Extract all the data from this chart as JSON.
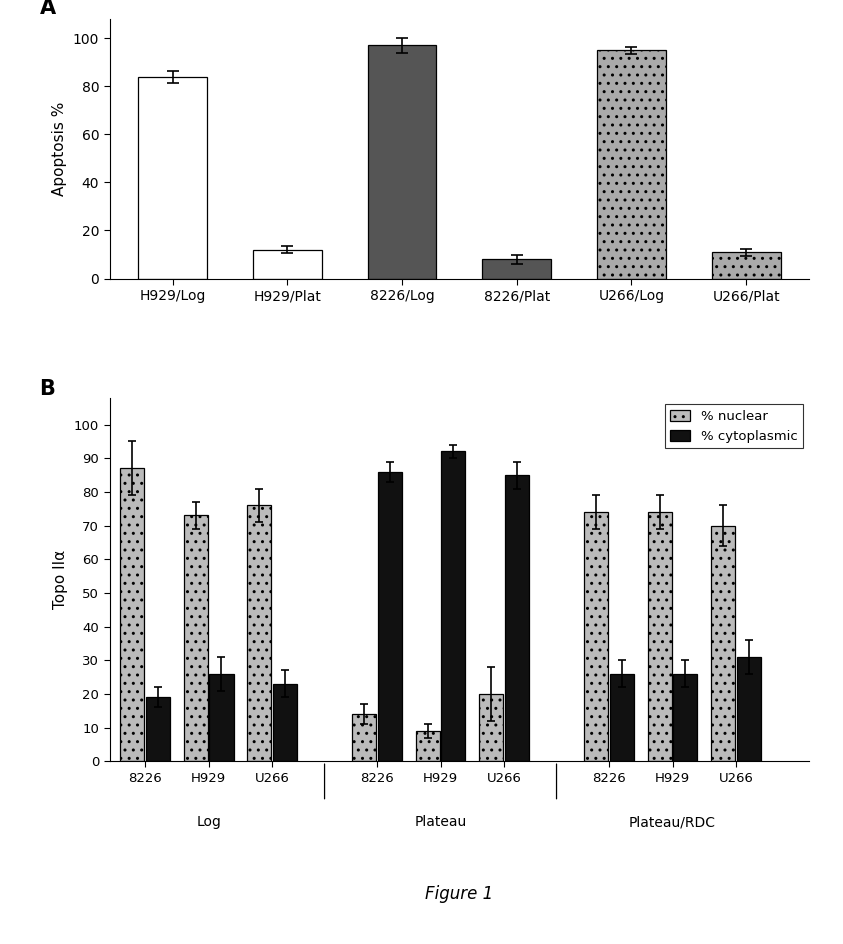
{
  "panel_A": {
    "categories": [
      "H929/Log",
      "H929/Plat",
      "8226/Log",
      "8226/Plat",
      "U266/Log",
      "U266/Plat"
    ],
    "values": [
      84,
      12,
      97,
      8,
      95,
      11
    ],
    "errors": [
      2.5,
      1.5,
      3.0,
      2.0,
      1.5,
      1.5
    ],
    "colors": [
      "white",
      "white",
      "#555555",
      "#555555",
      "#aaaaaa",
      "#aaaaaa"
    ],
    "hatches": [
      "",
      "",
      "",
      "",
      "..",
      ".."
    ],
    "edgecolors": [
      "black",
      "black",
      "black",
      "black",
      "black",
      "black"
    ],
    "ylabel": "Apoptosis %",
    "ylim": [
      0,
      108
    ],
    "yticks": [
      0,
      20,
      40,
      60,
      80,
      100
    ],
    "panel_label": "A"
  },
  "panel_B": {
    "groups": [
      "Log",
      "Plateau",
      "Plateau/RDC"
    ],
    "subgroups": [
      "8226",
      "H929",
      "U266"
    ],
    "nuclear_values": [
      [
        87,
        73,
        76
      ],
      [
        14,
        9,
        20
      ],
      [
        74,
        74,
        70
      ]
    ],
    "cytoplasmic_values": [
      [
        19,
        26,
        23
      ],
      [
        86,
        92,
        85
      ],
      [
        26,
        26,
        31
      ]
    ],
    "nuclear_errors": [
      [
        8,
        4,
        5
      ],
      [
        3,
        2,
        8
      ],
      [
        5,
        5,
        6
      ]
    ],
    "cytoplasmic_errors": [
      [
        3,
        5,
        4
      ],
      [
        3,
        2,
        4
      ],
      [
        4,
        4,
        5
      ]
    ],
    "nuclear_color": "#bbbbbb",
    "cytoplasmic_color": "#111111",
    "nuclear_hatch": "..",
    "cytoplasmic_hatch": "",
    "ylabel": "Topo IIα",
    "ylim": [
      0,
      108
    ],
    "yticks": [
      0,
      10,
      20,
      30,
      40,
      50,
      60,
      70,
      80,
      90,
      100
    ],
    "panel_label": "B",
    "legend_labels": [
      "% nuclear",
      "% cytoplasmic"
    ]
  },
  "figure_caption": "Figure 1",
  "background_color": "white",
  "figsize_inches": [
    8.43,
    9.44
  ]
}
